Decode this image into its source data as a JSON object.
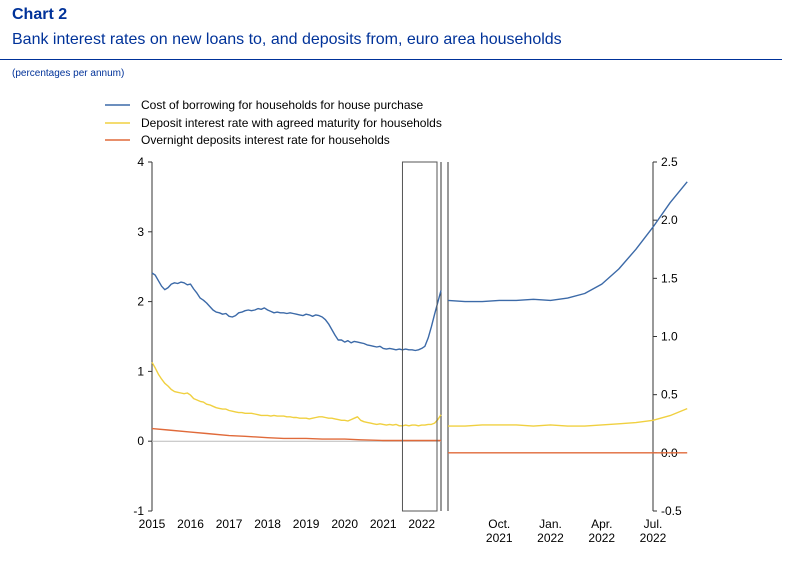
{
  "header": {
    "kicker": "Chart 2",
    "title": "Bank interest rates on new loans to, and deposits from, euro area households",
    "note": "(percentages per annum)"
  },
  "colors": {
    "blue": "#3c6aa8",
    "yellow": "#f0d040",
    "orange": "#e06a3a",
    "zero_line": "#bbbbbb",
    "axis": "#333333",
    "box": "#555555"
  },
  "chart_data": [
    {
      "type": "line",
      "panel": "left",
      "y_axis_side": "left",
      "ylim": [
        -1,
        4
      ],
      "y_ticks": [
        "-1",
        "0",
        "1",
        "2",
        "3",
        "4"
      ],
      "x_ticks": [
        "2015",
        "2016",
        "2017",
        "2018",
        "2019",
        "2020",
        "2021",
        "2022"
      ],
      "xlim": [
        "2015-01",
        "2022-07"
      ],
      "highlight_box": [
        "2021-07",
        "2022-07"
      ],
      "legend": [
        "Cost of borrowing for households for house purchase",
        "Deposit interest rate with agreed maturity for households",
        "Overnight deposits interest rate for households"
      ],
      "series": [
        {
          "name": "Cost of borrowing for households for house purchase",
          "color_key": "blue",
          "points": [
            [
              "2015-01",
              2.41
            ],
            [
              "2015-02",
              2.38
            ],
            [
              "2015-03",
              2.3
            ],
            [
              "2015-04",
              2.22
            ],
            [
              "2015-05",
              2.17
            ],
            [
              "2015-06",
              2.2
            ],
            [
              "2015-07",
              2.25
            ],
            [
              "2015-08",
              2.27
            ],
            [
              "2015-09",
              2.26
            ],
            [
              "2015-10",
              2.28
            ],
            [
              "2015-11",
              2.27
            ],
            [
              "2015-12",
              2.24
            ],
            [
              "2016-01",
              2.25
            ],
            [
              "2016-02",
              2.18
            ],
            [
              "2016-03",
              2.12
            ],
            [
              "2016-04",
              2.05
            ],
            [
              "2016-05",
              2.02
            ],
            [
              "2016-06",
              1.98
            ],
            [
              "2016-07",
              1.93
            ],
            [
              "2016-08",
              1.88
            ],
            [
              "2016-09",
              1.85
            ],
            [
              "2016-10",
              1.84
            ],
            [
              "2016-11",
              1.82
            ],
            [
              "2016-12",
              1.83
            ],
            [
              "2017-01",
              1.79
            ],
            [
              "2017-02",
              1.78
            ],
            [
              "2017-03",
              1.8
            ],
            [
              "2017-04",
              1.84
            ],
            [
              "2017-05",
              1.85
            ],
            [
              "2017-06",
              1.87
            ],
            [
              "2017-07",
              1.88
            ],
            [
              "2017-08",
              1.87
            ],
            [
              "2017-09",
              1.88
            ],
            [
              "2017-10",
              1.9
            ],
            [
              "2017-11",
              1.89
            ],
            [
              "2017-12",
              1.91
            ],
            [
              "2018-01",
              1.88
            ],
            [
              "2018-02",
              1.86
            ],
            [
              "2018-03",
              1.84
            ],
            [
              "2018-04",
              1.85
            ],
            [
              "2018-05",
              1.84
            ],
            [
              "2018-06",
              1.84
            ],
            [
              "2018-07",
              1.83
            ],
            [
              "2018-08",
              1.84
            ],
            [
              "2018-09",
              1.83
            ],
            [
              "2018-10",
              1.82
            ],
            [
              "2018-11",
              1.81
            ],
            [
              "2018-12",
              1.8
            ],
            [
              "2019-01",
              1.82
            ],
            [
              "2019-02",
              1.81
            ],
            [
              "2019-03",
              1.79
            ],
            [
              "2019-04",
              1.81
            ],
            [
              "2019-05",
              1.8
            ],
            [
              "2019-06",
              1.78
            ],
            [
              "2019-07",
              1.74
            ],
            [
              "2019-08",
              1.68
            ],
            [
              "2019-09",
              1.6
            ],
            [
              "2019-10",
              1.52
            ],
            [
              "2019-11",
              1.45
            ],
            [
              "2019-12",
              1.45
            ],
            [
              "2020-01",
              1.42
            ],
            [
              "2020-02",
              1.44
            ],
            [
              "2020-03",
              1.41
            ],
            [
              "2020-04",
              1.43
            ],
            [
              "2020-05",
              1.42
            ],
            [
              "2020-06",
              1.41
            ],
            [
              "2020-07",
              1.4
            ],
            [
              "2020-08",
              1.38
            ],
            [
              "2020-09",
              1.37
            ],
            [
              "2020-10",
              1.36
            ],
            [
              "2020-11",
              1.35
            ],
            [
              "2020-12",
              1.36
            ],
            [
              "2021-01",
              1.33
            ],
            [
              "2021-02",
              1.32
            ],
            [
              "2021-03",
              1.33
            ],
            [
              "2021-04",
              1.32
            ],
            [
              "2021-05",
              1.31
            ],
            [
              "2021-06",
              1.32
            ],
            [
              "2021-07",
              1.31
            ],
            [
              "2021-08",
              1.32
            ],
            [
              "2021-09",
              1.31
            ],
            [
              "2021-10",
              1.31
            ],
            [
              "2021-11",
              1.3
            ],
            [
              "2021-12",
              1.31
            ],
            [
              "2022-01",
              1.33
            ],
            [
              "2022-02",
              1.36
            ],
            [
              "2022-03",
              1.48
            ],
            [
              "2022-04",
              1.64
            ],
            [
              "2022-05",
              1.82
            ],
            [
              "2022-06",
              1.99
            ],
            [
              "2022-07",
              2.16
            ]
          ]
        },
        {
          "name": "Deposit interest rate with agreed maturity for households",
          "color_key": "yellow",
          "points": [
            [
              "2015-01",
              1.13
            ],
            [
              "2015-02",
              1.05
            ],
            [
              "2015-03",
              0.96
            ],
            [
              "2015-04",
              0.89
            ],
            [
              "2015-05",
              0.83
            ],
            [
              "2015-06",
              0.79
            ],
            [
              "2015-07",
              0.74
            ],
            [
              "2015-08",
              0.71
            ],
            [
              "2015-09",
              0.7
            ],
            [
              "2015-10",
              0.69
            ],
            [
              "2015-11",
              0.68
            ],
            [
              "2015-12",
              0.69
            ],
            [
              "2016-01",
              0.66
            ],
            [
              "2016-02",
              0.61
            ],
            [
              "2016-03",
              0.59
            ],
            [
              "2016-04",
              0.57
            ],
            [
              "2016-05",
              0.56
            ],
            [
              "2016-06",
              0.53
            ],
            [
              "2016-07",
              0.52
            ],
            [
              "2016-08",
              0.5
            ],
            [
              "2016-09",
              0.48
            ],
            [
              "2016-10",
              0.47
            ],
            [
              "2016-11",
              0.46
            ],
            [
              "2016-12",
              0.46
            ],
            [
              "2017-01",
              0.44
            ],
            [
              "2017-02",
              0.43
            ],
            [
              "2017-03",
              0.42
            ],
            [
              "2017-04",
              0.41
            ],
            [
              "2017-05",
              0.41
            ],
            [
              "2017-06",
              0.4
            ],
            [
              "2017-07",
              0.4
            ],
            [
              "2017-08",
              0.4
            ],
            [
              "2017-09",
              0.39
            ],
            [
              "2017-10",
              0.38
            ],
            [
              "2017-11",
              0.37
            ],
            [
              "2017-12",
              0.37
            ],
            [
              "2018-01",
              0.37
            ],
            [
              "2018-02",
              0.36
            ],
            [
              "2018-03",
              0.37
            ],
            [
              "2018-04",
              0.36
            ],
            [
              "2018-05",
              0.36
            ],
            [
              "2018-06",
              0.36
            ],
            [
              "2018-07",
              0.35
            ],
            [
              "2018-08",
              0.35
            ],
            [
              "2018-09",
              0.34
            ],
            [
              "2018-10",
              0.34
            ],
            [
              "2018-11",
              0.33
            ],
            [
              "2018-12",
              0.33
            ],
            [
              "2019-01",
              0.33
            ],
            [
              "2019-02",
              0.32
            ],
            [
              "2019-03",
              0.33
            ],
            [
              "2019-04",
              0.34
            ],
            [
              "2019-05",
              0.35
            ],
            [
              "2019-06",
              0.35
            ],
            [
              "2019-07",
              0.34
            ],
            [
              "2019-08",
              0.33
            ],
            [
              "2019-09",
              0.33
            ],
            [
              "2019-10",
              0.32
            ],
            [
              "2019-11",
              0.31
            ],
            [
              "2019-12",
              0.3
            ],
            [
              "2020-01",
              0.3
            ],
            [
              "2020-02",
              0.29
            ],
            [
              "2020-03",
              0.31
            ],
            [
              "2020-04",
              0.33
            ],
            [
              "2020-05",
              0.35
            ],
            [
              "2020-06",
              0.3
            ],
            [
              "2020-07",
              0.28
            ],
            [
              "2020-08",
              0.27
            ],
            [
              "2020-09",
              0.26
            ],
            [
              "2020-10",
              0.25
            ],
            [
              "2020-11",
              0.24
            ],
            [
              "2020-12",
              0.25
            ],
            [
              "2021-01",
              0.24
            ],
            [
              "2021-02",
              0.23
            ],
            [
              "2021-03",
              0.24
            ],
            [
              "2021-04",
              0.23
            ],
            [
              "2021-05",
              0.24
            ],
            [
              "2021-06",
              0.22
            ],
            [
              "2021-07",
              0.22
            ],
            [
              "2021-08",
              0.23
            ],
            [
              "2021-09",
              0.22
            ],
            [
              "2021-10",
              0.23
            ],
            [
              "2021-11",
              0.23
            ],
            [
              "2021-12",
              0.22
            ],
            [
              "2022-01",
              0.23
            ],
            [
              "2022-02",
              0.23
            ],
            [
              "2022-03",
              0.24
            ],
            [
              "2022-04",
              0.24
            ],
            [
              "2022-05",
              0.26
            ],
            [
              "2022-06",
              0.31
            ],
            [
              "2022-07",
              0.38
            ]
          ]
        },
        {
          "name": "Overnight deposits interest rate for households",
          "color_key": "orange",
          "points": [
            [
              "2015-01",
              0.18
            ],
            [
              "2015-06",
              0.16
            ],
            [
              "2016-01",
              0.13
            ],
            [
              "2016-06",
              0.11
            ],
            [
              "2017-01",
              0.08
            ],
            [
              "2017-06",
              0.07
            ],
            [
              "2018-01",
              0.05
            ],
            [
              "2018-06",
              0.04
            ],
            [
              "2019-01",
              0.04
            ],
            [
              "2019-06",
              0.03
            ],
            [
              "2020-01",
              0.03
            ],
            [
              "2020-06",
              0.02
            ],
            [
              "2021-01",
              0.01
            ],
            [
              "2021-06",
              0.01
            ],
            [
              "2022-01",
              0.01
            ],
            [
              "2022-07",
              0.01
            ]
          ]
        }
      ]
    },
    {
      "type": "line",
      "panel": "right",
      "y_axis_side": "right",
      "ylim": [
        -0.5,
        2.5
      ],
      "y_ticks": [
        "-0.5",
        "0.0",
        "0.5",
        "1.0",
        "1.5",
        "2.0",
        "2.5"
      ],
      "x_ticks": [
        {
          "at": "2021-10",
          "line1": "Oct.",
          "line2": "2021"
        },
        {
          "at": "2022-01",
          "line1": "Jan.",
          "line2": "2022"
        },
        {
          "at": "2022-04",
          "line1": "Apr.",
          "line2": "2022"
        },
        {
          "at": "2022-07",
          "line1": "Jul.",
          "line2": "2022"
        }
      ],
      "xlim": [
        "2021-07",
        "2022-07"
      ],
      "series": [
        {
          "name": "Cost of borrowing for households for house purchase",
          "color_key": "blue",
          "points": [
            [
              "2021-07",
              1.31
            ],
            [
              "2021-08",
              1.3
            ],
            [
              "2021-09",
              1.3
            ],
            [
              "2021-10",
              1.31
            ],
            [
              "2021-11",
              1.31
            ],
            [
              "2021-12",
              1.32
            ],
            [
              "2022-01",
              1.31
            ],
            [
              "2022-02",
              1.33
            ],
            [
              "2022-03",
              1.37
            ],
            [
              "2022-04",
              1.45
            ],
            [
              "2022-05",
              1.58
            ],
            [
              "2022-06",
              1.75
            ],
            [
              "2022-07",
              1.94
            ],
            [
              "2022-08",
              2.15
            ],
            [
              "2022-09",
              2.33
            ]
          ]
        },
        {
          "name": "Deposit interest rate with agreed maturity for households",
          "color_key": "yellow",
          "points": [
            [
              "2021-07",
              0.23
            ],
            [
              "2021-08",
              0.23
            ],
            [
              "2021-09",
              0.24
            ],
            [
              "2021-10",
              0.24
            ],
            [
              "2021-11",
              0.24
            ],
            [
              "2021-12",
              0.23
            ],
            [
              "2022-01",
              0.24
            ],
            [
              "2022-02",
              0.23
            ],
            [
              "2022-03",
              0.23
            ],
            [
              "2022-04",
              0.24
            ],
            [
              "2022-05",
              0.25
            ],
            [
              "2022-06",
              0.26
            ],
            [
              "2022-07",
              0.28
            ],
            [
              "2022-08",
              0.32
            ],
            [
              "2022-09",
              0.38
            ]
          ]
        },
        {
          "name": "Overnight deposits interest rate for households",
          "color_key": "orange",
          "points": [
            [
              "2021-07",
              0.0
            ],
            [
              "2022-01",
              0.0
            ],
            [
              "2022-09",
              0.0
            ]
          ]
        }
      ]
    }
  ]
}
